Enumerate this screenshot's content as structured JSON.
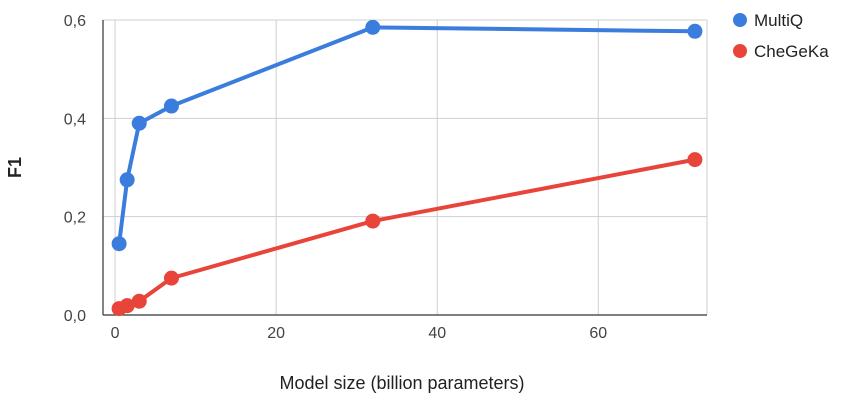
{
  "chart_data": {
    "type": "scatter",
    "title": "",
    "xlabel": "Model size (billion parameters)",
    "ylabel": "F1",
    "xlim": [
      -1.5,
      73.5
    ],
    "ylim": [
      0,
      0.6
    ],
    "x_ticks": [
      0,
      20,
      40,
      60
    ],
    "y_ticks": [
      0,
      0.2,
      0.4,
      0.6
    ],
    "x_tick_labels": [
      "0",
      "20",
      "40",
      "60"
    ],
    "y_tick_labels": [
      "0,0",
      "0,2",
      "0,4",
      "0,6"
    ],
    "grid": true,
    "legend_position": "right",
    "series": [
      {
        "name": "MultiQ",
        "color": "#3b7ddd",
        "x": [
          0.5,
          1.5,
          3,
          7,
          32,
          72
        ],
        "y": [
          0.145,
          0.275,
          0.39,
          0.425,
          0.585,
          0.577
        ]
      },
      {
        "name": "CheGeKa",
        "color": "#e8443a",
        "x": [
          0.5,
          1.5,
          3,
          7,
          32,
          72
        ],
        "y": [
          0.013,
          0.019,
          0.028,
          0.075,
          0.191,
          0.316
        ]
      }
    ]
  }
}
